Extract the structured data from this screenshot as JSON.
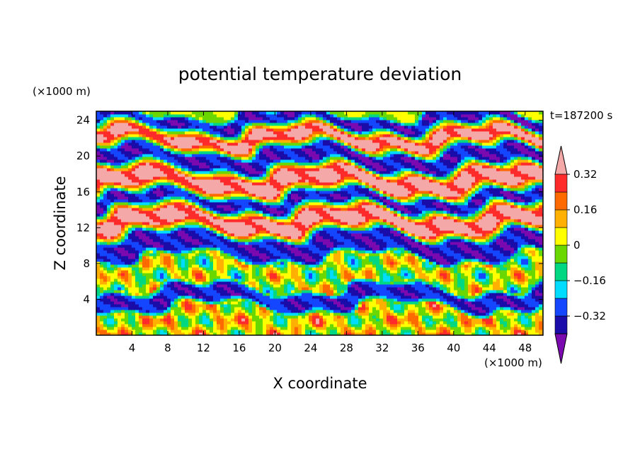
{
  "chart_data": {
    "type": "heatmap",
    "title": "potential temperature deviation",
    "xlabel": "X coordinate",
    "ylabel": "Z coordinate",
    "x_unit": "(×1000 m)",
    "y_unit": "(×1000 m)",
    "time_label": "t=187200 s",
    "xlim": [
      0,
      50
    ],
    "ylim": [
      0,
      25
    ],
    "x_ticks": [
      4,
      8,
      12,
      16,
      20,
      24,
      28,
      32,
      36,
      40,
      44,
      48
    ],
    "y_ticks": [
      4,
      8,
      12,
      16,
      20,
      24
    ],
    "colorbar": {
      "levels": [
        -0.4,
        -0.32,
        -0.24,
        -0.16,
        -0.08,
        0,
        0.08,
        0.16,
        0.24,
        0.32,
        0.4
      ],
      "tick_values": [
        0.32,
        0.16,
        0,
        -0.16,
        -0.32
      ],
      "tick_labels": [
        "0.32",
        "0.16",
        "0",
        "−0.16",
        "−0.32"
      ],
      "colors": [
        "#7a0ab0",
        "#1a0ca8",
        "#1446ff",
        "#00dcff",
        "#00d782",
        "#6ad800",
        "#ffff00",
        "#ffb000",
        "#ff6a00",
        "#ff2a2a",
        "#f5a8a8"
      ]
    },
    "bands": [
      {
        "z_bottom": 0.0,
        "z_top": 3.0,
        "level": 0.05,
        "pattern": "mixed"
      },
      {
        "z_bottom": 3.0,
        "z_top": 5.5,
        "level": -0.35,
        "pattern": "layer"
      },
      {
        "z_bottom": 5.5,
        "z_top": 8.5,
        "level": 0.0,
        "pattern": "mixed"
      },
      {
        "z_bottom": 8.5,
        "z_top": 11.5,
        "level": -0.36,
        "pattern": "layer"
      },
      {
        "z_bottom": 11.5,
        "z_top": 14.0,
        "level": 0.36,
        "pattern": "layer"
      },
      {
        "z_bottom": 14.0,
        "z_top": 16.0,
        "level": -0.36,
        "pattern": "layer"
      },
      {
        "z_bottom": 16.0,
        "z_top": 18.5,
        "level": 0.36,
        "pattern": "layer"
      },
      {
        "z_bottom": 18.5,
        "z_top": 21.0,
        "level": -0.36,
        "pattern": "layer"
      },
      {
        "z_bottom": 21.0,
        "z_top": 23.0,
        "level": 0.36,
        "pattern": "layer"
      },
      {
        "z_bottom": 23.0,
        "z_top": 25.0,
        "level": -0.36,
        "pattern": "layer"
      }
    ]
  }
}
